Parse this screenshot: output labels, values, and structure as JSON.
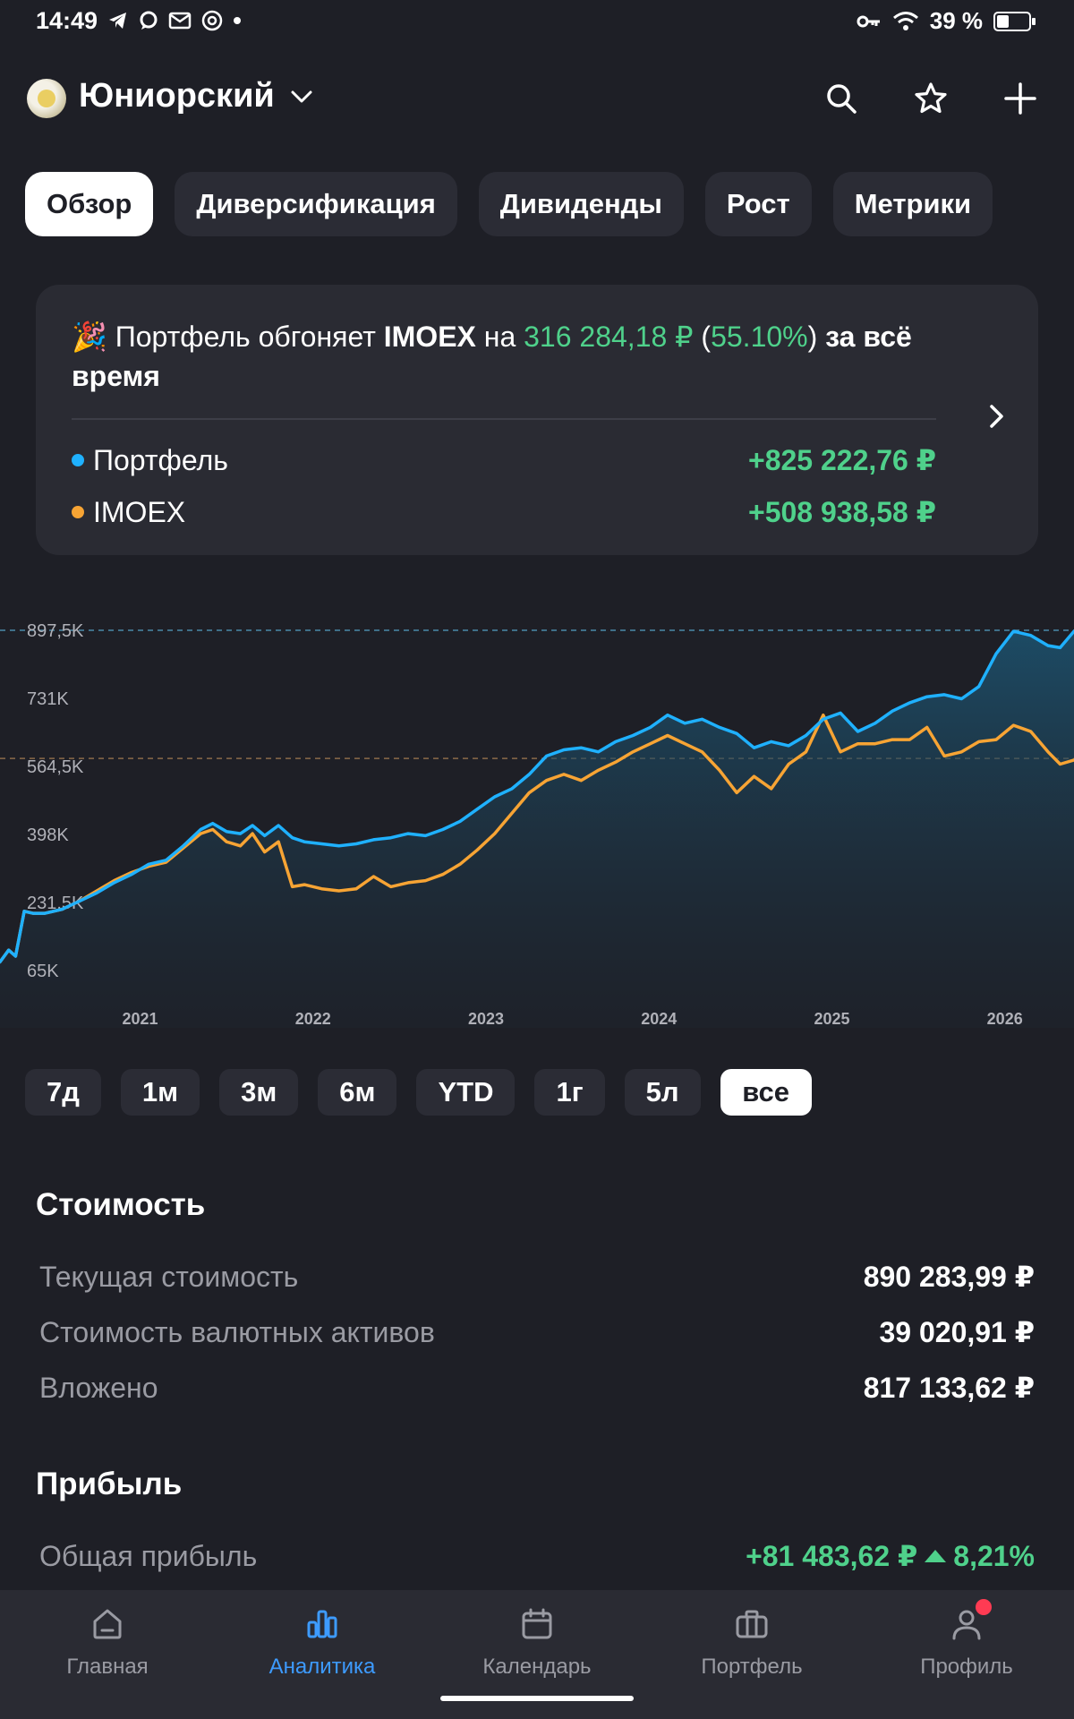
{
  "status_bar": {
    "time": "14:49",
    "battery": "39 %",
    "battery_level": 0.39
  },
  "header": {
    "title": "Юниорский"
  },
  "tabs": [
    {
      "label": "Обзор",
      "active": true
    },
    {
      "label": "Диверсификация",
      "active": false
    },
    {
      "label": "Дивиденды",
      "active": false
    },
    {
      "label": "Рост",
      "active": false
    },
    {
      "label": "Метрики",
      "active": false
    }
  ],
  "comparison": {
    "emoji": "🎉",
    "text_prefix": "Портфель обгоняет",
    "index": "IMOEX",
    "text_on": "на",
    "diff": "316 284,18 ₽",
    "pct_open": "(",
    "pct": "55.10%",
    "pct_close": ")",
    "suffix": "за всё время",
    "rows": [
      {
        "label": "Портфель",
        "value": "+825 222,76 ₽",
        "color": "#1fb1ff"
      },
      {
        "label": "IMOEX",
        "value": "+508 938,58 ₽",
        "color": "#f7a434"
      }
    ]
  },
  "chart_data": {
    "type": "line",
    "y_ticks": [
      "897,5K",
      "731K",
      "564,5K",
      "398K",
      "231,5K",
      "65K"
    ],
    "x_ticks": [
      "2021",
      "2022",
      "2023",
      "2024",
      "2025",
      "2026"
    ],
    "ylim": [
      65000,
      897500
    ],
    "xlim": [
      2020.19,
      2026.4
    ],
    "x_tick_values": [
      2021,
      2022,
      2023,
      2024,
      2025,
      2026
    ],
    "reference_lines": [
      {
        "value": 897500,
        "color": "#4a8aa8"
      },
      {
        "value": 584000,
        "color": "#8a6a4a"
      }
    ],
    "series": [
      {
        "name": "Портфель",
        "color": "#1fb1ff",
        "points": [
          [
            2020.19,
            86000
          ],
          [
            2020.24,
            115000
          ],
          [
            2020.28,
            100000
          ],
          [
            2020.33,
            210000
          ],
          [
            2020.38,
            205000
          ],
          [
            2020.45,
            205000
          ],
          [
            2020.55,
            215000
          ],
          [
            2020.65,
            235000
          ],
          [
            2020.75,
            255000
          ],
          [
            2020.85,
            280000
          ],
          [
            2020.95,
            300000
          ],
          [
            2021.05,
            325000
          ],
          [
            2021.15,
            335000
          ],
          [
            2021.25,
            370000
          ],
          [
            2021.35,
            410000
          ],
          [
            2021.42,
            425000
          ],
          [
            2021.5,
            405000
          ],
          [
            2021.58,
            400000
          ],
          [
            2021.65,
            420000
          ],
          [
            2021.72,
            395000
          ],
          [
            2021.8,
            420000
          ],
          [
            2021.88,
            390000
          ],
          [
            2021.95,
            380000
          ],
          [
            2022.05,
            375000
          ],
          [
            2022.15,
            370000
          ],
          [
            2022.25,
            375000
          ],
          [
            2022.35,
            385000
          ],
          [
            2022.45,
            390000
          ],
          [
            2022.55,
            400000
          ],
          [
            2022.65,
            395000
          ],
          [
            2022.75,
            410000
          ],
          [
            2022.85,
            430000
          ],
          [
            2022.95,
            460000
          ],
          [
            2023.05,
            490000
          ],
          [
            2023.15,
            510000
          ],
          [
            2023.25,
            545000
          ],
          [
            2023.35,
            590000
          ],
          [
            2023.45,
            605000
          ],
          [
            2023.55,
            610000
          ],
          [
            2023.65,
            600000
          ],
          [
            2023.75,
            625000
          ],
          [
            2023.85,
            640000
          ],
          [
            2023.95,
            660000
          ],
          [
            2024.05,
            690000
          ],
          [
            2024.15,
            670000
          ],
          [
            2024.25,
            680000
          ],
          [
            2024.35,
            660000
          ],
          [
            2024.45,
            645000
          ],
          [
            2024.55,
            610000
          ],
          [
            2024.65,
            625000
          ],
          [
            2024.75,
            615000
          ],
          [
            2024.85,
            640000
          ],
          [
            2024.95,
            680000
          ],
          [
            2025.05,
            695000
          ],
          [
            2025.15,
            650000
          ],
          [
            2025.25,
            670000
          ],
          [
            2025.35,
            700000
          ],
          [
            2025.45,
            720000
          ],
          [
            2025.55,
            735000
          ],
          [
            2025.65,
            740000
          ],
          [
            2025.75,
            730000
          ],
          [
            2025.85,
            760000
          ],
          [
            2025.95,
            840000
          ],
          [
            2026.05,
            895000
          ],
          [
            2026.15,
            885000
          ],
          [
            2026.25,
            860000
          ],
          [
            2026.32,
            855000
          ],
          [
            2026.4,
            895000
          ]
        ]
      },
      {
        "name": "IMOEX",
        "color": "#f7a434",
        "points": [
          [
            2020.19,
            86000
          ],
          [
            2020.24,
            115000
          ],
          [
            2020.28,
            100000
          ],
          [
            2020.33,
            210000
          ],
          [
            2020.38,
            205000
          ],
          [
            2020.45,
            205000
          ],
          [
            2020.55,
            215000
          ],
          [
            2020.65,
            235000
          ],
          [
            2020.75,
            260000
          ],
          [
            2020.85,
            285000
          ],
          [
            2020.95,
            305000
          ],
          [
            2021.05,
            320000
          ],
          [
            2021.15,
            330000
          ],
          [
            2021.25,
            365000
          ],
          [
            2021.35,
            400000
          ],
          [
            2021.42,
            410000
          ],
          [
            2021.5,
            380000
          ],
          [
            2021.58,
            370000
          ],
          [
            2021.65,
            400000
          ],
          [
            2021.72,
            355000
          ],
          [
            2021.8,
            380000
          ],
          [
            2021.88,
            270000
          ],
          [
            2021.95,
            275000
          ],
          [
            2022.05,
            265000
          ],
          [
            2022.15,
            260000
          ],
          [
            2022.25,
            265000
          ],
          [
            2022.35,
            295000
          ],
          [
            2022.45,
            270000
          ],
          [
            2022.55,
            280000
          ],
          [
            2022.65,
            285000
          ],
          [
            2022.75,
            300000
          ],
          [
            2022.85,
            325000
          ],
          [
            2022.95,
            360000
          ],
          [
            2023.05,
            400000
          ],
          [
            2023.15,
            450000
          ],
          [
            2023.25,
            500000
          ],
          [
            2023.35,
            530000
          ],
          [
            2023.45,
            545000
          ],
          [
            2023.55,
            530000
          ],
          [
            2023.65,
            555000
          ],
          [
            2023.75,
            575000
          ],
          [
            2023.85,
            600000
          ],
          [
            2023.95,
            620000
          ],
          [
            2024.05,
            640000
          ],
          [
            2024.15,
            620000
          ],
          [
            2024.25,
            600000
          ],
          [
            2024.35,
            555000
          ],
          [
            2024.45,
            500000
          ],
          [
            2024.55,
            540000
          ],
          [
            2024.65,
            510000
          ],
          [
            2024.75,
            570000
          ],
          [
            2024.85,
            600000
          ],
          [
            2024.95,
            690000
          ],
          [
            2025.05,
            600000
          ],
          [
            2025.15,
            620000
          ],
          [
            2025.25,
            620000
          ],
          [
            2025.35,
            630000
          ],
          [
            2025.45,
            630000
          ],
          [
            2025.55,
            660000
          ],
          [
            2025.65,
            590000
          ],
          [
            2025.75,
            600000
          ],
          [
            2025.85,
            625000
          ],
          [
            2025.95,
            630000
          ],
          [
            2026.05,
            665000
          ],
          [
            2026.15,
            650000
          ],
          [
            2026.25,
            600000
          ],
          [
            2026.32,
            570000
          ],
          [
            2026.4,
            580000
          ]
        ]
      }
    ]
  },
  "periods": [
    {
      "label": "7д",
      "active": false
    },
    {
      "label": "1м",
      "active": false
    },
    {
      "label": "3м",
      "active": false
    },
    {
      "label": "6м",
      "active": false
    },
    {
      "label": "YTD",
      "active": false
    },
    {
      "label": "1г",
      "active": false
    },
    {
      "label": "5л",
      "active": false
    },
    {
      "label": "все",
      "active": true
    }
  ],
  "value_section": {
    "title": "Стоимость",
    "rows": [
      {
        "label": "Текущая стоимость",
        "value": "890 283,99 ₽"
      },
      {
        "label": "Стоимость валютных активов",
        "value": "39 020,91 ₽"
      },
      {
        "label": "Вложено",
        "value": "817 133,62 ₽"
      }
    ]
  },
  "profit_section": {
    "title": "Прибыль",
    "rows": [
      {
        "label": "Общая прибыль",
        "value": "+81 483,62 ₽",
        "pct": "8,21%"
      }
    ]
  },
  "nav": [
    {
      "label": "Главная",
      "icon": "home-icon",
      "active": false
    },
    {
      "label": "Аналитика",
      "icon": "analytics-icon",
      "active": true
    },
    {
      "label": "Календарь",
      "icon": "calendar-icon",
      "active": false
    },
    {
      "label": "Портфель",
      "icon": "briefcase-icon",
      "active": false
    },
    {
      "label": "Профиль",
      "icon": "profile-icon",
      "active": false,
      "badge": true
    }
  ]
}
